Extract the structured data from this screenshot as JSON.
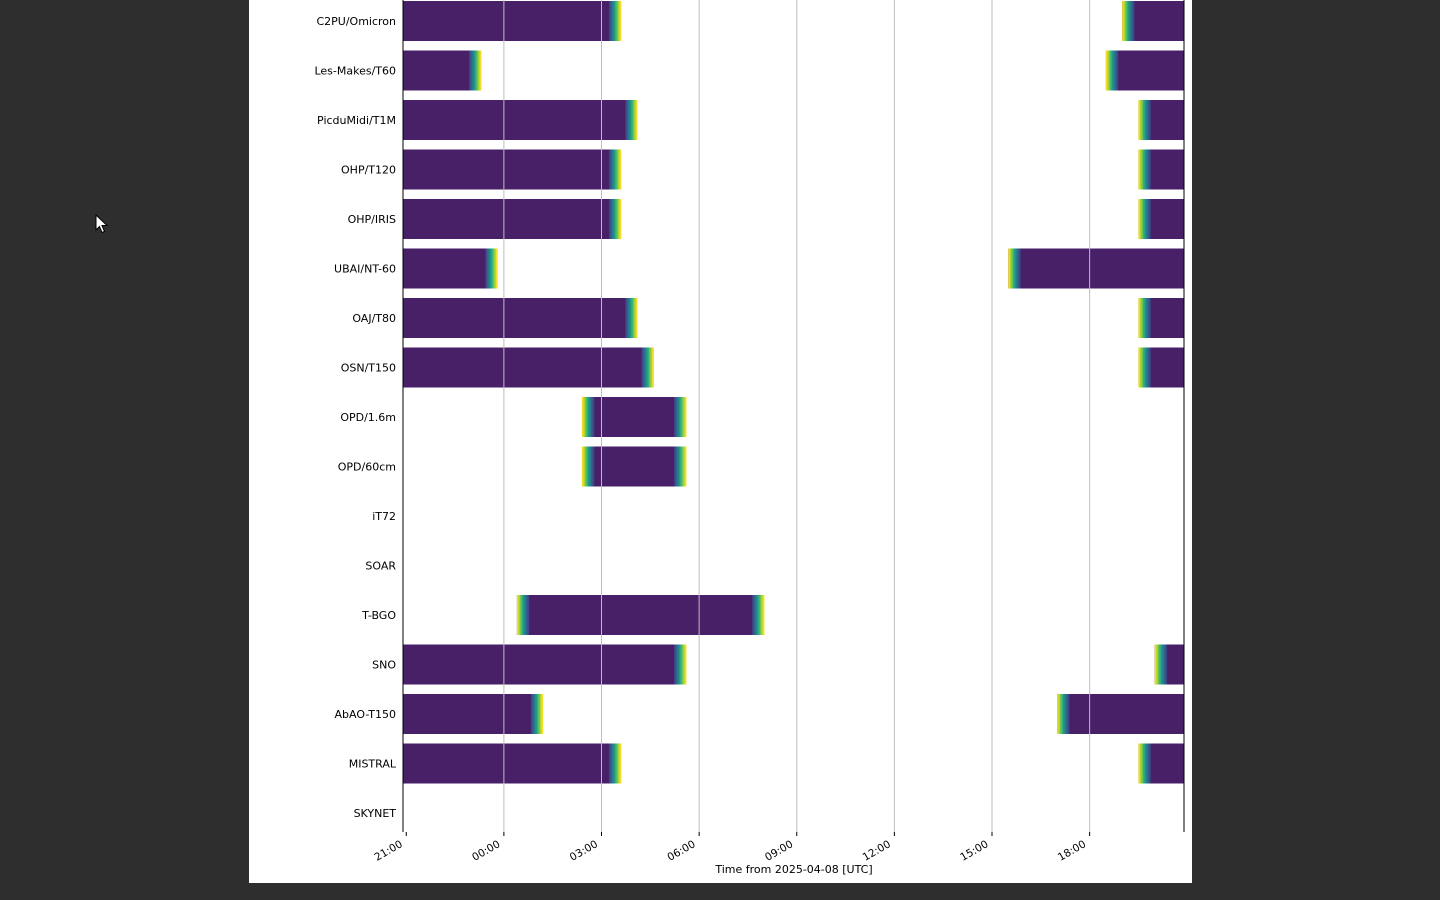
{
  "chart_data": {
    "type": "bar",
    "subtype": "timeline",
    "xlabel": "Time from 2025-04-08 [UTC]",
    "x_ticks": [
      "21:00",
      "00:00",
      "03:00",
      "06:00",
      "09:00",
      "12:00",
      "15:00",
      "18:00"
    ],
    "x_range_hours": [
      -3.1,
      20.9
    ],
    "gridlines": true,
    "colormap": "viridis",
    "colors": {
      "bar": "#482068",
      "edge_ramp": [
        "#3e4a89",
        "#31688e",
        "#26828e",
        "#1f9e89",
        "#35b779",
        "#6ece58",
        "#b5de2b",
        "#fde725"
      ]
    },
    "categories": [
      "C2PU/Omicron",
      "Les-Makes/T60",
      "PicduMidi/T1M",
      "OHP/T120",
      "OHP/IRIS",
      "UBAI/NT-60",
      "OAJ/T80",
      "OSN/T150",
      "OPD/1.6m",
      "OPD/60cm",
      "iT72",
      "SOAR",
      "T-BGO",
      "SNO",
      "AbAO-T150",
      "MISTRAL",
      "SKYNET"
    ],
    "windows_hours": [
      [
        [
          -3.1,
          3.6
        ],
        [
          19.0,
          20.9
        ]
      ],
      [
        [
          -3.1,
          -0.7
        ],
        [
          18.5,
          20.9
        ]
      ],
      [
        [
          -3.1,
          4.1
        ],
        [
          19.5,
          20.9
        ]
      ],
      [
        [
          -3.1,
          3.6
        ],
        [
          19.5,
          20.9
        ]
      ],
      [
        [
          -3.1,
          3.6
        ],
        [
          19.5,
          20.9
        ]
      ],
      [
        [
          -3.1,
          -0.2
        ],
        [
          15.5,
          20.9
        ]
      ],
      [
        [
          -3.1,
          4.1
        ],
        [
          19.5,
          20.9
        ]
      ],
      [
        [
          -3.1,
          4.6
        ],
        [
          19.5,
          20.9
        ]
      ],
      [
        [
          2.4,
          5.6
        ]
      ],
      [
        [
          2.4,
          5.6
        ]
      ],
      [],
      [],
      [
        [
          0.4,
          8.0
        ]
      ],
      [
        [
          -3.1,
          5.6
        ],
        [
          20.0,
          20.9
        ]
      ],
      [
        [
          -3.1,
          1.2
        ],
        [
          17.0,
          20.9
        ]
      ],
      [
        [
          -3.1,
          3.6
        ],
        [
          19.5,
          20.9
        ]
      ],
      []
    ]
  }
}
